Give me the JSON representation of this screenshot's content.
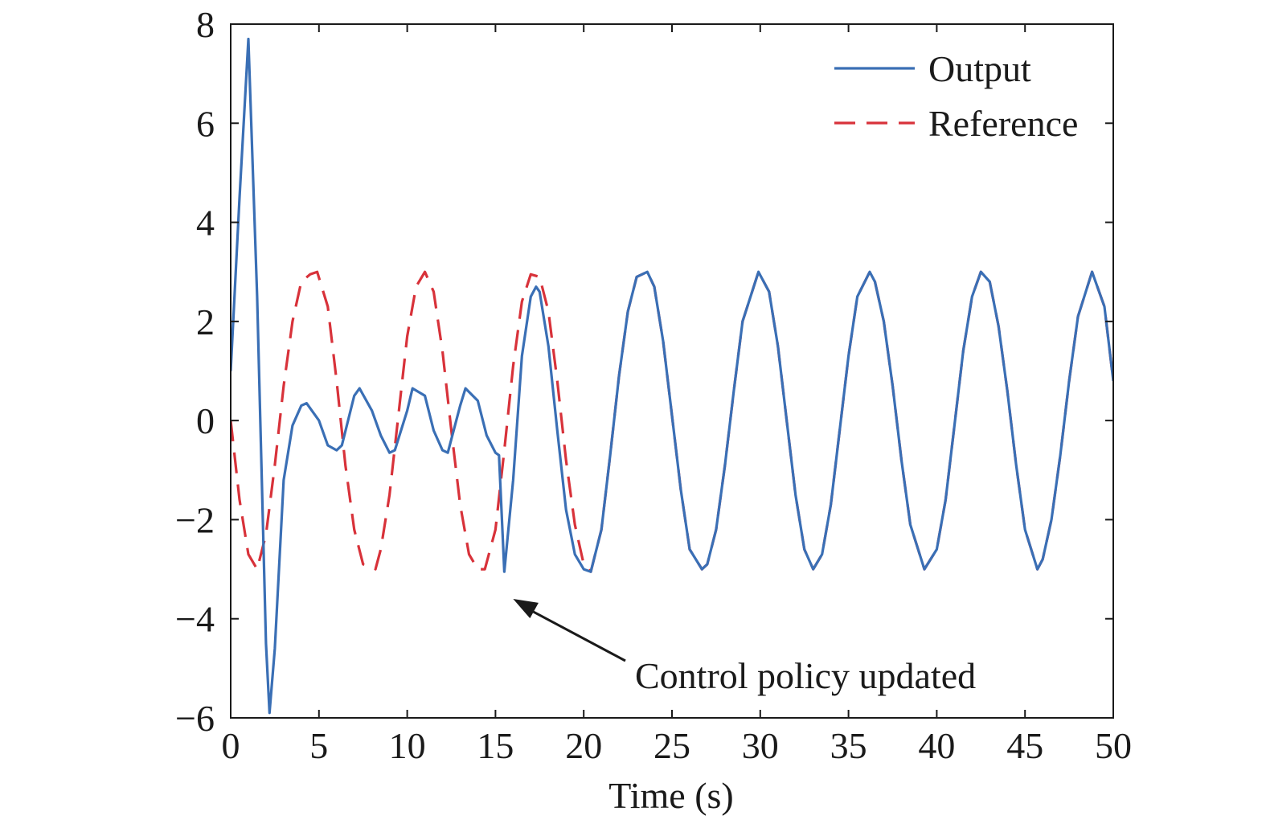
{
  "chart_data": {
    "type": "line",
    "xlabel": "Time (s)",
    "ylabel": "",
    "xlim": [
      0,
      50
    ],
    "ylim": [
      -6,
      8
    ],
    "xticks": [
      "0",
      "5",
      "10",
      "15",
      "20",
      "25",
      "30",
      "35",
      "40",
      "45",
      "50"
    ],
    "yticks": [
      "−6",
      "−4",
      "−2",
      "0",
      "2",
      "4",
      "6",
      "8"
    ],
    "grid": false,
    "legend_position": "top-right",
    "series": [
      {
        "name": "Output",
        "color": "#3a6fb5",
        "style": "solid",
        "x": [
          0,
          0.5,
          1.0,
          1.5,
          2.0,
          2.2,
          2.5,
          3.0,
          3.5,
          4.0,
          4.3,
          5.0,
          5.5,
          6.0,
          6.3,
          7.0,
          7.3,
          8.0,
          8.5,
          9.0,
          9.3,
          10.0,
          10.3,
          11.0,
          11.5,
          12.0,
          12.3,
          13.0,
          13.3,
          14.0,
          14.5,
          15.0,
          15.2,
          15.5,
          16.0,
          16.5,
          17.0,
          17.3,
          17.5,
          18.0,
          18.5,
          19.0,
          19.5,
          20.0,
          20.4,
          21.0,
          21.5,
          22.0,
          22.5,
          23.0,
          23.6,
          24.0,
          24.5,
          25.0,
          25.5,
          26.0,
          26.7,
          27.0,
          27.5,
          28.0,
          28.5,
          29.0,
          29.9,
          30.5,
          31.0,
          31.5,
          32.0,
          32.5,
          33.0,
          33.5,
          34.0,
          34.5,
          35.0,
          35.5,
          36.2,
          36.5,
          37.0,
          37.5,
          38.0,
          38.5,
          39.3,
          40.0,
          40.5,
          41.0,
          41.5,
          42.0,
          42.5,
          43.0,
          43.5,
          44.0,
          44.5,
          45.0,
          45.7,
          46.0,
          46.5,
          47.0,
          47.5,
          48.0,
          48.8,
          49.5,
          50.0
        ],
        "y": [
          1.0,
          4.5,
          7.7,
          2.5,
          -4.5,
          -5.9,
          -4.6,
          -1.2,
          -0.1,
          0.3,
          0.35,
          0.0,
          -0.5,
          -0.6,
          -0.5,
          0.5,
          0.65,
          0.2,
          -0.3,
          -0.65,
          -0.6,
          0.2,
          0.65,
          0.5,
          -0.2,
          -0.6,
          -0.65,
          0.3,
          0.65,
          0.4,
          -0.3,
          -0.65,
          -0.7,
          -3.05,
          -1.2,
          1.3,
          2.5,
          2.7,
          2.6,
          1.5,
          -0.2,
          -1.8,
          -2.7,
          -3.0,
          -3.05,
          -2.2,
          -0.7,
          0.9,
          2.2,
          2.9,
          3.0,
          2.7,
          1.6,
          0.1,
          -1.4,
          -2.6,
          -3.0,
          -2.9,
          -2.2,
          -0.9,
          0.6,
          2.0,
          3.0,
          2.6,
          1.5,
          0.0,
          -1.5,
          -2.6,
          -3.0,
          -2.7,
          -1.7,
          -0.2,
          1.3,
          2.5,
          3.0,
          2.8,
          2.0,
          0.7,
          -0.8,
          -2.1,
          -3.0,
          -2.6,
          -1.6,
          -0.1,
          1.4,
          2.5,
          3.0,
          2.8,
          1.9,
          0.6,
          -0.9,
          -2.2,
          -3.0,
          -2.8,
          -2.0,
          -0.7,
          0.8,
          2.1,
          3.0,
          2.3,
          0.8
        ]
      },
      {
        "name": "Reference",
        "color": "#d8323a",
        "style": "dashed",
        "x": [
          0,
          0.5,
          1.0,
          1.5,
          2.0,
          2.5,
          3.0,
          3.5,
          4.0,
          4.5,
          4.9,
          5.5,
          6.0,
          6.5,
          7.0,
          7.5,
          8.0,
          8.2,
          8.5,
          9.0,
          9.5,
          10.0,
          10.5,
          11.0,
          11.5,
          12.0,
          12.5,
          13.0,
          13.5,
          14.0,
          14.4,
          15.0,
          15.5,
          16.0,
          16.5,
          17.0,
          17.5,
          18.0,
          18.5,
          19.0,
          19.5,
          20.0,
          20.4,
          21.0,
          21.5,
          22.0,
          22.5,
          23.0,
          23.6,
          24.0,
          24.5,
          25.0,
          25.5,
          26.0,
          26.7,
          27.0,
          27.5,
          28.0,
          28.5,
          29.0,
          29.9,
          30.5,
          31.0,
          31.5,
          32.0,
          32.5,
          33.0,
          33.5,
          34.0,
          34.5,
          35.0,
          35.5,
          36.2,
          36.5,
          37.0,
          37.5,
          38.0,
          38.5,
          39.3,
          40.0,
          40.5,
          41.0,
          41.5,
          42.0,
          42.5,
          43.0,
          43.5,
          44.0,
          44.5,
          45.0,
          45.7,
          46.0,
          46.5,
          47.0,
          47.5,
          48.0,
          48.8,
          49.5,
          50.0
        ],
        "y": [
          0.0,
          -1.6,
          -2.7,
          -3.0,
          -2.3,
          -0.9,
          0.7,
          2.0,
          2.8,
          2.95,
          3.0,
          2.3,
          0.8,
          -0.9,
          -2.2,
          -2.9,
          -2.95,
          -3.0,
          -2.6,
          -1.5,
          0.1,
          1.7,
          2.7,
          3.0,
          2.6,
          1.4,
          -0.2,
          -1.7,
          -2.7,
          -3.0,
          -3.0,
          -2.2,
          -0.6,
          1.1,
          2.4,
          2.95,
          2.9,
          2.2,
          0.8,
          -0.8,
          -2.1,
          -2.9,
          -3.05,
          -2.2,
          -0.7,
          0.9,
          2.2,
          2.9,
          3.0,
          2.7,
          1.6,
          0.1,
          -1.4,
          -2.6,
          -3.0,
          -2.9,
          -2.2,
          -0.9,
          0.6,
          2.0,
          3.0,
          2.6,
          1.5,
          0.0,
          -1.5,
          -2.6,
          -3.0,
          -2.7,
          -1.7,
          -0.2,
          1.3,
          2.5,
          3.0,
          2.8,
          2.0,
          0.7,
          -0.8,
          -2.1,
          -3.0,
          -2.6,
          -1.6,
          -0.1,
          1.4,
          2.5,
          3.0,
          2.8,
          1.9,
          0.6,
          -0.9,
          -2.2,
          -3.0,
          -2.8,
          -2.0,
          -0.7,
          0.8,
          2.1,
          3.0,
          2.3,
          0.8
        ]
      }
    ],
    "annotations": [
      {
        "text": "Control policy updated",
        "arrow_to": [
          16.0,
          -3.6
        ]
      }
    ]
  }
}
